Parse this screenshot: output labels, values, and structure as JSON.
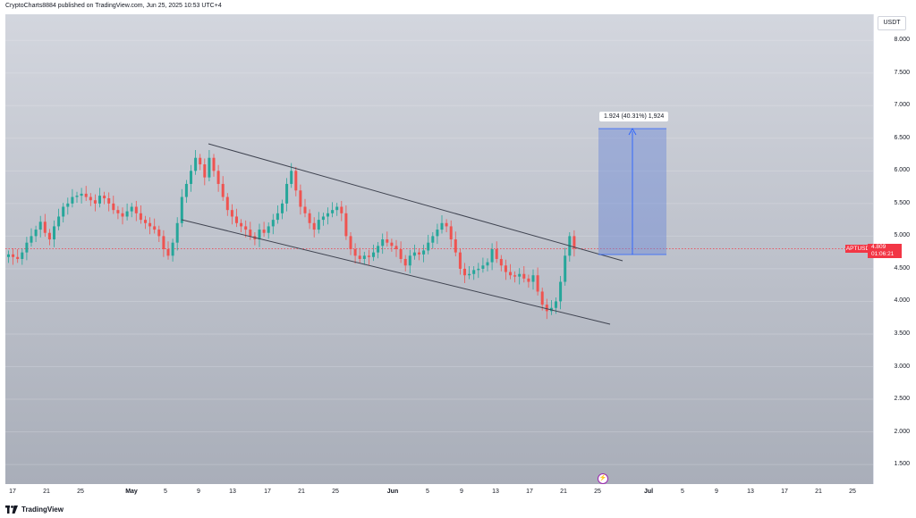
{
  "header": {
    "publish_line": "CryptoCharts8884 published on TradingView.com, Jun 25, 2025 10:53 UTC+4"
  },
  "price_axis": {
    "currency": "USDT",
    "ticks": [
      "8.000",
      "7.500",
      "7.000",
      "6.500",
      "6.000",
      "5.500",
      "5.000",
      "4.500",
      "4.000",
      "3.500",
      "3.000",
      "2.500",
      "2.000",
      "1.500"
    ]
  },
  "price_tag": {
    "symbol": "APTUSDT",
    "price": "4.809",
    "countdown": "01:06:21"
  },
  "time_axis": {
    "labels": [
      "17",
      "21",
      "25",
      "May",
      "5",
      "9",
      "13",
      "17",
      "21",
      "25",
      "Jun",
      "5",
      "9",
      "13",
      "17",
      "21",
      "25",
      "Jul",
      "5",
      "9",
      "13",
      "17",
      "21",
      "25"
    ],
    "bold_labels": [
      "May",
      "Jun",
      "Jul"
    ]
  },
  "measure": {
    "label": "1.924 (40.31%) 1,924"
  },
  "footer": {
    "brand": "TradingView"
  },
  "colors": {
    "up": "#26a69a",
    "down": "#ef5350",
    "box_fill": "#6b87d6",
    "arrow": "#2962ff",
    "price_line": "#f23645",
    "channel": "#3f4350"
  },
  "chart_data": {
    "type": "candlestick",
    "symbol": "APTUSDT",
    "currency": "USDT",
    "ylim": [
      1.2,
      8.4
    ],
    "yticks": [
      8.0,
      7.5,
      7.0,
      6.5,
      6.0,
      5.5,
      5.0,
      4.5,
      4.0,
      3.5,
      3.0,
      2.5,
      2.0,
      1.5
    ],
    "last_price": 4.809,
    "close_series": [
      4.72,
      4.68,
      4.65,
      4.75,
      4.9,
      5.0,
      5.1,
      5.22,
      5.05,
      4.95,
      5.15,
      5.3,
      5.45,
      5.5,
      5.6,
      5.62,
      5.65,
      5.6,
      5.55,
      5.5,
      5.62,
      5.58,
      5.5,
      5.4,
      5.35,
      5.3,
      5.38,
      5.45,
      5.35,
      5.25,
      5.2,
      5.15,
      5.1,
      5.0,
      4.8,
      4.7,
      4.9,
      5.2,
      5.6,
      5.8,
      6.0,
      6.2,
      6.1,
      5.9,
      6.2,
      6.0,
      5.8,
      5.6,
      5.4,
      5.3,
      5.2,
      5.15,
      5.1,
      5.0,
      4.95,
      5.1,
      5.05,
      5.15,
      5.25,
      5.35,
      5.5,
      5.8,
      6.0,
      5.7,
      5.45,
      5.35,
      5.2,
      5.1,
      5.25,
      5.3,
      5.35,
      5.4,
      5.45,
      5.35,
      5.0,
      4.8,
      4.7,
      4.65,
      4.7,
      4.68,
      4.75,
      4.85,
      4.95,
      4.9,
      4.85,
      4.8,
      4.65,
      4.55,
      4.7,
      4.75,
      4.72,
      4.78,
      4.9,
      5.0,
      5.1,
      5.2,
      5.15,
      4.95,
      4.75,
      4.5,
      4.4,
      4.42,
      4.48,
      4.5,
      4.55,
      4.6,
      4.8,
      4.65,
      4.55,
      4.45,
      4.4,
      4.38,
      4.42,
      4.35,
      4.3,
      4.4,
      4.15,
      3.95,
      3.85,
      3.9,
      4.0,
      4.3,
      4.7,
      5.0,
      4.809
    ],
    "channel_upper": [
      {
        "x": "Apr 29",
        "y": 6.5
      },
      {
        "x": "Jun 26",
        "y": 4.7
      }
    ],
    "channel_lower": [
      {
        "x": "Apr 27",
        "y": 5.3
      },
      {
        "x": "Jun 26",
        "y": 3.7
      }
    ],
    "measure": {
      "from": 4.77,
      "to": 6.694,
      "change": 1.924,
      "percent": 40.31
    },
    "grid": true
  }
}
